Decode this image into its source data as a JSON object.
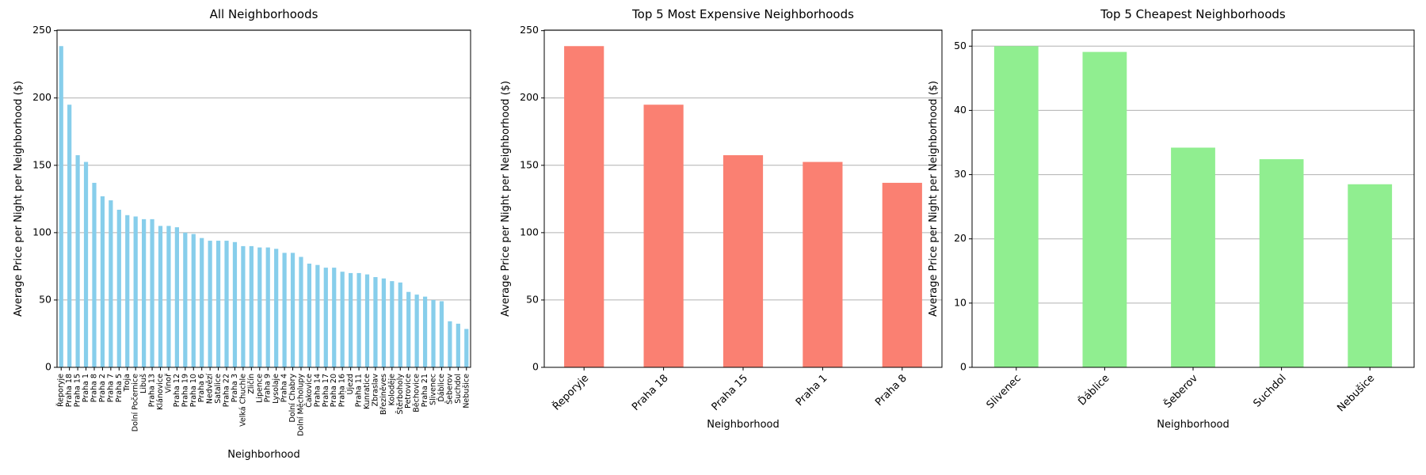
{
  "chart_data": [
    {
      "type": "bar",
      "title": "All Neighborhoods",
      "x_label": "Neighborhood",
      "y_label": "Average Price per Night per Neighborhood ($)",
      "categories": [
        "Řeporyje",
        "Praha 18",
        "Praha 15",
        "Praha 1",
        "Praha 8",
        "Praha 2",
        "Praha 7",
        "Praha 5",
        "Troja",
        "Dolní Počernice",
        "Libuš",
        "Praha 13",
        "Klánovice",
        "Vinoř",
        "Praha 12",
        "Praha 19",
        "Praha 10",
        "Praha 6",
        "Nedvězí",
        "Satalice",
        "Praha 22",
        "Praha 3",
        "Velká Chuchle",
        "Zličín",
        "Lipence",
        "Praha 9",
        "Lysolaje",
        "Praha 4",
        "Dolní Chabry",
        "Dolní Měcholupy",
        "Čakovice",
        "Praha 14",
        "Praha 17",
        "Praha 20",
        "Praha 16",
        "Újezd",
        "Praha 11",
        "Kunratice",
        "Zbraslav",
        "Březiněves",
        "Koloděje",
        "Štěrboholy",
        "Petrovice",
        "Běchovice",
        "Praha 21",
        "Slivenec",
        "Ďáblice",
        "Šeberov",
        "Suchdol",
        "Nebušice"
      ],
      "values": [
        238.5,
        195,
        157.5,
        152.5,
        137,
        127,
        124,
        117,
        113,
        112,
        110,
        110,
        105,
        105,
        104,
        100,
        99,
        96,
        94,
        94,
        94,
        93,
        90,
        90,
        89,
        89,
        88,
        85,
        85,
        82,
        77,
        76,
        74,
        74,
        71,
        70,
        70,
        69,
        67,
        66,
        64,
        63,
        56,
        54,
        52.5,
        50,
        49.1,
        34.2,
        32.4,
        28.5
      ],
      "color": "#87ceeb",
      "ylim": [
        0,
        250.4
      ],
      "yticks": [
        0,
        50,
        100,
        150,
        200,
        250
      ],
      "grid": true
    },
    {
      "type": "bar",
      "title": "Top 5 Most Expensive Neighborhoods",
      "x_label": "Neighborhood",
      "y_label": "Average Price per Night per Neighborhood ($)",
      "categories": [
        "Řeporyje",
        "Praha 18",
        "Praha 15",
        "Praha 1",
        "Praha 8"
      ],
      "values": [
        238.5,
        195,
        157.5,
        152.5,
        137
      ],
      "color": "#fa8072",
      "ylim": [
        0,
        250.4
      ],
      "yticks": [
        0,
        50,
        100,
        150,
        200,
        250
      ],
      "grid": true
    },
    {
      "type": "bar",
      "title": "Top 5 Cheapest Neighborhoods",
      "x_label": "Neighborhood",
      "y_label": "Average Price per Night per Neighborhood ($)",
      "categories": [
        "Slivenec",
        "Ďáblice",
        "Šeberov",
        "Suchdol",
        "Nebušice"
      ],
      "values": [
        50,
        49.1,
        34.2,
        32.4,
        28.5
      ],
      "color": "#90ee90",
      "ylim": [
        0,
        52.5
      ],
      "yticks": [
        0,
        10,
        20,
        30,
        40,
        50
      ],
      "grid": true
    }
  ]
}
